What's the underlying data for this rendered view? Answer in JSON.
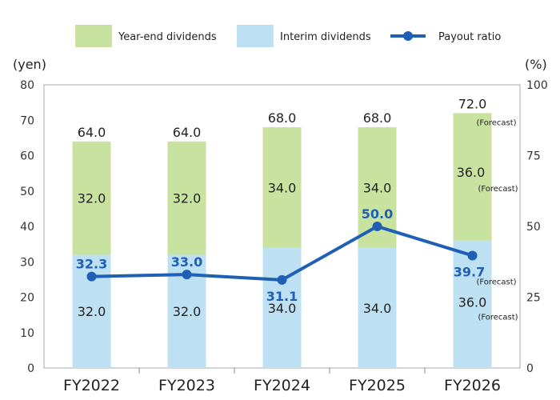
{
  "chart_data": {
    "type": "bar",
    "categories": [
      "FY2022",
      "FY2023",
      "FY2024",
      "FY2025",
      "FY2026"
    ],
    "y_unit": "(yen)",
    "y2_unit": "(%)",
    "ylim": [
      0,
      80
    ],
    "yticks": [
      0,
      10,
      20,
      30,
      40,
      50,
      60,
      70,
      80
    ],
    "y2lim": [
      0,
      100
    ],
    "y2ticks": [
      0,
      25,
      50,
      75,
      100
    ],
    "stacked": true,
    "series": [
      {
        "name": "Interim dividends",
        "type": "bar",
        "color": "#bde0f2",
        "values": [
          32.0,
          32.0,
          34.0,
          34.0,
          36.0
        ],
        "labels": [
          "32.0",
          "32.0",
          "34.0",
          "34.0",
          "36.0"
        ]
      },
      {
        "name": "Year-end dividends",
        "type": "bar",
        "color": "#c8e29f",
        "values": [
          32.0,
          32.0,
          34.0,
          34.0,
          36.0
        ],
        "labels": [
          "32.0",
          "32.0",
          "34.0",
          "34.0",
          "36.0"
        ]
      },
      {
        "name": "Payout ratio",
        "type": "line",
        "axis": "right",
        "color": "#1f5fb5",
        "values": [
          32.3,
          33.0,
          31.1,
          50.0,
          39.7
        ],
        "labels": [
          "32.3",
          "33.0",
          "31.1",
          "50.0",
          "39.7"
        ]
      }
    ],
    "totals": [
      64.0,
      64.0,
      68.0,
      68.0,
      72.0
    ],
    "total_labels": [
      "64.0",
      "64.0",
      "68.0",
      "68.0",
      "72.0"
    ],
    "forecast_note": "(Forecast)",
    "legend_order": [
      "Year-end dividends",
      "Interim dividends",
      "Payout ratio"
    ],
    "legend_position": "top"
  }
}
